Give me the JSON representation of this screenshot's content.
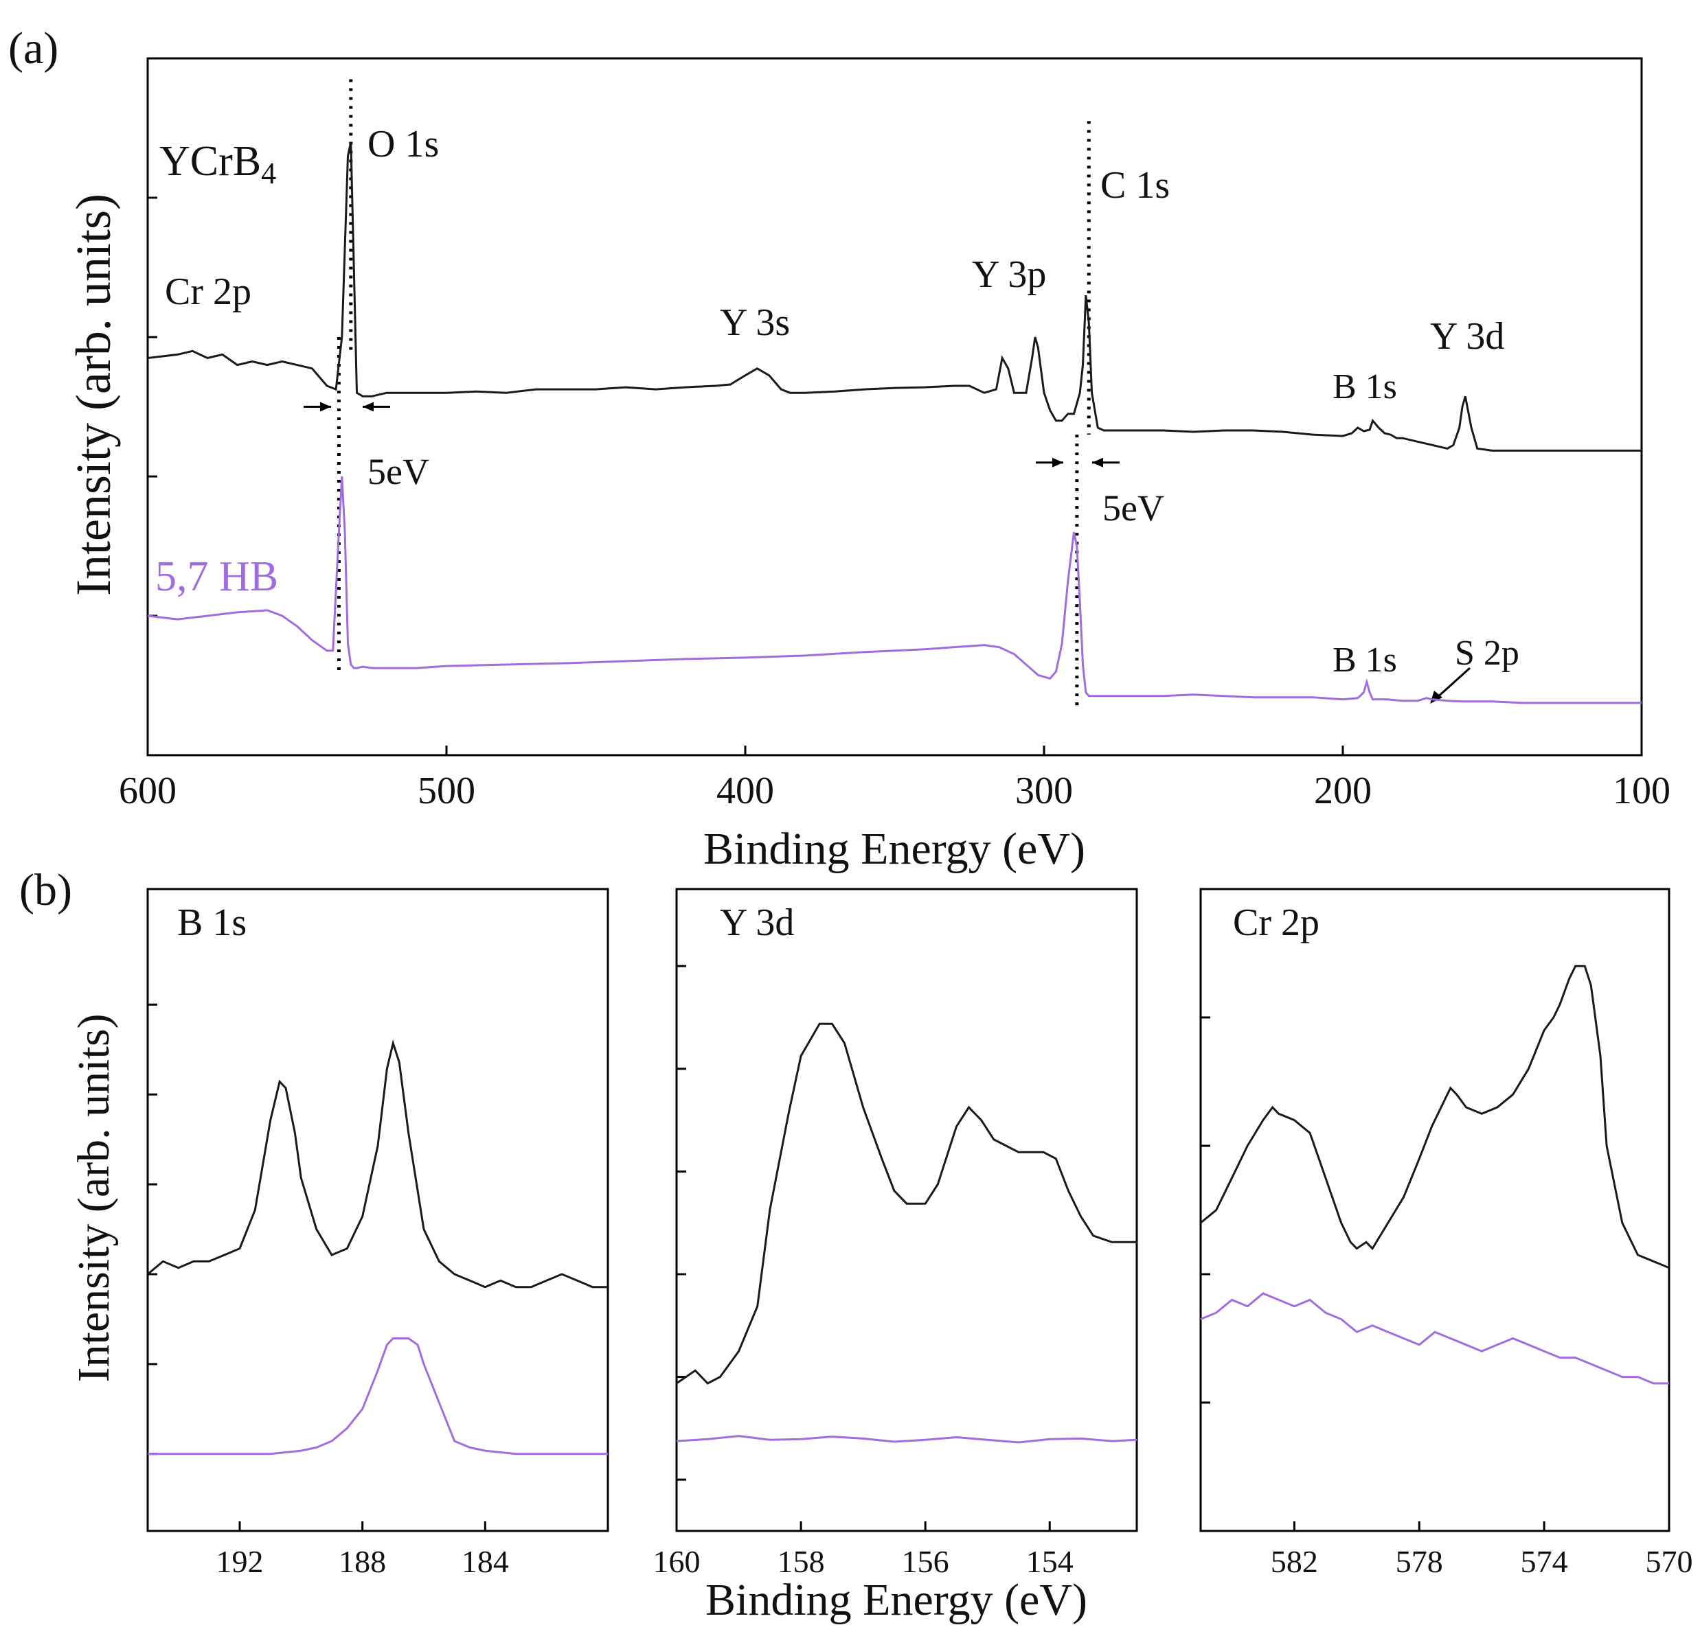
{
  "figure": {
    "panel_a_label": "(a)",
    "panel_b_label": "(b)",
    "colors": {
      "ycrb4": "#1a1a1a",
      "hb": "#a06ce0",
      "axis": "#000000"
    }
  },
  "chart_data": [
    {
      "id": "survey",
      "type": "line",
      "xlabel": "Binding Energy (eV)",
      "ylabel": "Intensity (arb. units)",
      "xlim": [
        600,
        100
      ],
      "ylim": [
        0,
        1
      ],
      "xticks": [
        600,
        500,
        400,
        300,
        200,
        100
      ],
      "y_minor_ticks": [
        0.2,
        0.4,
        0.6,
        0.8,
        1.0
      ],
      "series": [
        {
          "name": "YCrB4",
          "label_parts": [
            "YCrB",
            "4"
          ],
          "color": "#1a1a1a",
          "x": [
            600,
            590,
            585,
            580,
            575,
            570,
            565,
            560,
            555,
            550,
            545,
            540,
            537,
            535,
            533,
            532,
            531,
            530,
            528,
            525,
            520,
            510,
            500,
            490,
            480,
            470,
            460,
            450,
            440,
            430,
            420,
            410,
            405,
            400,
            396,
            392,
            388,
            385,
            380,
            370,
            360,
            350,
            340,
            330,
            325,
            320,
            316,
            314,
            312,
            310,
            306,
            304,
            303,
            302,
            300,
            298,
            296,
            294,
            292,
            290,
            288,
            287,
            286,
            285,
            284,
            282,
            280,
            270,
            260,
            250,
            240,
            230,
            220,
            210,
            200,
            197,
            195,
            193,
            191,
            190,
            188,
            186,
            184,
            182,
            180,
            175,
            170,
            165,
            163,
            161,
            160,
            159,
            157,
            155,
            150,
            140,
            130,
            120,
            110,
            100
          ],
          "values": [
            0.57,
            0.575,
            0.58,
            0.57,
            0.575,
            0.56,
            0.565,
            0.56,
            0.565,
            0.56,
            0.555,
            0.53,
            0.525,
            0.6,
            0.86,
            0.88,
            0.7,
            0.52,
            0.515,
            0.515,
            0.52,
            0.52,
            0.52,
            0.522,
            0.52,
            0.525,
            0.525,
            0.525,
            0.528,
            0.525,
            0.528,
            0.53,
            0.532,
            0.545,
            0.555,
            0.545,
            0.525,
            0.52,
            0.52,
            0.522,
            0.525,
            0.527,
            0.528,
            0.53,
            0.53,
            0.52,
            0.525,
            0.57,
            0.555,
            0.52,
            0.52,
            0.57,
            0.6,
            0.585,
            0.52,
            0.495,
            0.48,
            0.48,
            0.49,
            0.49,
            0.52,
            0.56,
            0.66,
            0.62,
            0.52,
            0.47,
            0.466,
            0.466,
            0.466,
            0.464,
            0.466,
            0.466,
            0.464,
            0.46,
            0.458,
            0.462,
            0.47,
            0.465,
            0.467,
            0.48,
            0.47,
            0.462,
            0.46,
            0.455,
            0.455,
            0.45,
            0.445,
            0.44,
            0.445,
            0.47,
            0.5,
            0.515,
            0.47,
            0.44,
            0.437,
            0.437,
            0.437,
            0.437,
            0.437,
            0.437
          ]
        },
        {
          "name": "5,7 HB",
          "color": "#a06ce0",
          "x": [
            600,
            590,
            580,
            570,
            560,
            555,
            550,
            545,
            540,
            538,
            536,
            535,
            534,
            533,
            532,
            531,
            530,
            528,
            525,
            520,
            510,
            500,
            480,
            460,
            440,
            420,
            400,
            380,
            360,
            340,
            320,
            315,
            310,
            306,
            302,
            298,
            296,
            294,
            292,
            290,
            289,
            288,
            287,
            286,
            285,
            284,
            282,
            280,
            270,
            260,
            250,
            240,
            230,
            220,
            210,
            200,
            195,
            193,
            192,
            191,
            190,
            188,
            185,
            180,
            175,
            172,
            170,
            165,
            160,
            150,
            140,
            120,
            100
          ],
          "values": [
            0.2,
            0.195,
            0.2,
            0.205,
            0.208,
            0.2,
            0.185,
            0.165,
            0.15,
            0.15,
            0.32,
            0.4,
            0.32,
            0.16,
            0.13,
            0.125,
            0.125,
            0.127,
            0.125,
            0.125,
            0.125,
            0.128,
            0.13,
            0.132,
            0.135,
            0.138,
            0.14,
            0.143,
            0.148,
            0.152,
            0.158,
            0.155,
            0.145,
            0.13,
            0.115,
            0.11,
            0.12,
            0.16,
            0.25,
            0.32,
            0.3,
            0.22,
            0.13,
            0.09,
            0.085,
            0.085,
            0.085,
            0.085,
            0.085,
            0.085,
            0.087,
            0.085,
            0.083,
            0.083,
            0.083,
            0.08,
            0.082,
            0.09,
            0.105,
            0.09,
            0.08,
            0.08,
            0.08,
            0.078,
            0.078,
            0.082,
            0.08,
            0.078,
            0.077,
            0.077,
            0.075,
            0.075,
            0.075
          ]
        }
      ],
      "annotations": {
        "o1s": "O 1s",
        "c1s": "C 1s",
        "y3p": "Y 3p",
        "y3s": "Y 3s",
        "y3d": "Y 3d",
        "cr2p": "Cr 2p",
        "b1s_upper": "B 1s",
        "b1s_lower": "B 1s",
        "s2p": "S 2p",
        "shift_o": "5eV",
        "shift_c": "5eV"
      }
    },
    {
      "id": "b1s",
      "type": "line",
      "title": "B 1s",
      "xlim": [
        195,
        180
      ],
      "ylim": [
        0,
        1
      ],
      "xticks": [
        192,
        188,
        184
      ],
      "xtick_labels": [
        "192",
        "188",
        "184"
      ],
      "y_minor_ticks": [
        0.12,
        0.26,
        0.4,
        0.54,
        0.68,
        0.82
      ],
      "series": [
        {
          "name": "YCrB4",
          "x": [
            195,
            194.5,
            194,
            193.5,
            193,
            192.5,
            192,
            191.5,
            191,
            190.7,
            190.5,
            190.2,
            190,
            189.5,
            189,
            188.5,
            188,
            187.5,
            187.2,
            187,
            186.8,
            186.5,
            186,
            185.5,
            185,
            184.5,
            184,
            183.5,
            183,
            182.5,
            182,
            181.5,
            181,
            180.5,
            180
          ],
          "values": [
            0.4,
            0.42,
            0.41,
            0.42,
            0.42,
            0.43,
            0.44,
            0.5,
            0.64,
            0.7,
            0.69,
            0.62,
            0.55,
            0.47,
            0.43,
            0.44,
            0.49,
            0.6,
            0.72,
            0.76,
            0.73,
            0.62,
            0.47,
            0.42,
            0.4,
            0.39,
            0.38,
            0.39,
            0.38,
            0.38,
            0.39,
            0.4,
            0.39,
            0.38,
            0.38
          ]
        },
        {
          "name": "5,7 HB",
          "x": [
            195,
            194,
            193,
            192,
            191,
            190,
            189.5,
            189,
            188.5,
            188,
            187.5,
            187.2,
            187,
            186.8,
            186.5,
            186.2,
            186,
            185.5,
            185,
            184.5,
            184,
            183,
            182,
            181,
            180
          ],
          "values": [
            0.12,
            0.12,
            0.12,
            0.12,
            0.12,
            0.125,
            0.13,
            0.14,
            0.16,
            0.19,
            0.25,
            0.29,
            0.3,
            0.3,
            0.3,
            0.29,
            0.26,
            0.2,
            0.14,
            0.13,
            0.125,
            0.12,
            0.12,
            0.12,
            0.12
          ]
        }
      ]
    },
    {
      "id": "y3d",
      "type": "line",
      "title": "Y 3d",
      "xlim": [
        160,
        152.6
      ],
      "ylim": [
        0,
        1
      ],
      "xticks": [
        160,
        158,
        156,
        154
      ],
      "xtick_labels": [
        "160",
        "158",
        "156",
        "154"
      ],
      "y_minor_ticks": [
        0.08,
        0.24,
        0.4,
        0.56,
        0.72,
        0.88
      ],
      "series": [
        {
          "name": "YCrB4",
          "x": [
            160,
            159.7,
            159.5,
            159.3,
            159,
            158.7,
            158.5,
            158.2,
            158,
            157.7,
            157.5,
            157.3,
            157,
            156.7,
            156.5,
            156.3,
            156,
            155.8,
            155.5,
            155.3,
            155.1,
            154.9,
            154.7,
            154.5,
            154.3,
            154.1,
            153.9,
            153.7,
            153.5,
            153.3,
            153,
            152.8,
            152.6
          ],
          "values": [
            0.23,
            0.25,
            0.23,
            0.24,
            0.28,
            0.35,
            0.5,
            0.65,
            0.74,
            0.79,
            0.79,
            0.76,
            0.66,
            0.58,
            0.53,
            0.51,
            0.51,
            0.54,
            0.63,
            0.66,
            0.64,
            0.61,
            0.6,
            0.59,
            0.59,
            0.59,
            0.58,
            0.53,
            0.49,
            0.46,
            0.45,
            0.45,
            0.45
          ]
        },
        {
          "name": "5,7 HB",
          "x": [
            160,
            159.5,
            159,
            158.5,
            158,
            157.5,
            157,
            156.5,
            156,
            155.5,
            155,
            154.5,
            154,
            153.5,
            153,
            152.6
          ],
          "values": [
            0.14,
            0.143,
            0.148,
            0.142,
            0.143,
            0.147,
            0.144,
            0.139,
            0.142,
            0.146,
            0.142,
            0.138,
            0.143,
            0.144,
            0.14,
            0.142
          ]
        }
      ]
    },
    {
      "id": "cr2p",
      "type": "line",
      "title": "Cr 2p",
      "xlim": [
        585,
        570
      ],
      "ylim": [
        0,
        1
      ],
      "xticks": [
        582,
        578,
        574,
        570
      ],
      "xtick_labels": [
        "582",
        "578",
        "574",
        "570"
      ],
      "y_minor_ticks": [
        0.2,
        0.4,
        0.6,
        0.8,
        1.0
      ],
      "series": [
        {
          "name": "YCrB4",
          "x": [
            585,
            584.5,
            584,
            583.5,
            583,
            582.7,
            582.5,
            582,
            581.5,
            581,
            580.5,
            580.2,
            580,
            579.7,
            579.5,
            579,
            578.5,
            578,
            577.6,
            577.2,
            577,
            576.8,
            576.5,
            576,
            575.5,
            575,
            574.5,
            574,
            573.7,
            573.5,
            573.2,
            573,
            572.7,
            572.5,
            572.2,
            572,
            571.5,
            571,
            570.5,
            570
          ],
          "values": [
            0.48,
            0.5,
            0.55,
            0.6,
            0.64,
            0.66,
            0.65,
            0.64,
            0.62,
            0.55,
            0.48,
            0.45,
            0.44,
            0.45,
            0.44,
            0.48,
            0.52,
            0.58,
            0.63,
            0.67,
            0.69,
            0.68,
            0.66,
            0.65,
            0.66,
            0.68,
            0.72,
            0.78,
            0.8,
            0.82,
            0.86,
            0.88,
            0.88,
            0.85,
            0.74,
            0.6,
            0.48,
            0.43,
            0.42,
            0.41
          ]
        },
        {
          "name": "5,7 HB",
          "x": [
            585,
            584.5,
            584,
            583.5,
            583,
            582.5,
            582,
            581.5,
            581,
            580.5,
            580,
            579.5,
            579,
            578.5,
            578,
            577.5,
            577,
            576.5,
            576,
            575.5,
            575,
            574.5,
            574,
            573.5,
            573,
            572.5,
            572,
            571.5,
            571,
            570.5,
            570
          ],
          "values": [
            0.33,
            0.34,
            0.36,
            0.35,
            0.37,
            0.36,
            0.35,
            0.36,
            0.34,
            0.33,
            0.31,
            0.32,
            0.31,
            0.3,
            0.29,
            0.31,
            0.3,
            0.29,
            0.28,
            0.29,
            0.3,
            0.29,
            0.28,
            0.27,
            0.27,
            0.26,
            0.25,
            0.24,
            0.24,
            0.23,
            0.23
          ]
        }
      ]
    }
  ],
  "panel_b_axes": {
    "xlabel": "Binding Energy (eV)",
    "ylabel": "Intensity (arb. units)"
  }
}
